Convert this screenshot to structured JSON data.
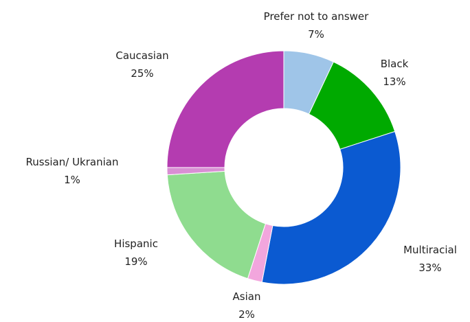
{
  "chart_data": {
    "type": "pie",
    "donut": true,
    "legend": "none",
    "slices": [
      {
        "label": "Prefer not to answer",
        "value": 7,
        "value_label": "7%",
        "color": "#9fc5e8"
      },
      {
        "label": "Black",
        "value": 13,
        "value_label": "13%",
        "color": "#00aa00"
      },
      {
        "label": "Multiracial",
        "value": 33,
        "value_label": "33%",
        "color": "#0b5ad1"
      },
      {
        "label": "Asian",
        "value": 2,
        "value_label": "2%",
        "color": "#f2a6dd"
      },
      {
        "label": "Hispanic",
        "value": 19,
        "value_label": "19%",
        "color": "#8fdc8f"
      },
      {
        "label": "Russian/ Ukranian",
        "value": 1,
        "value_label": "1%",
        "color": "#d98fd4"
      },
      {
        "label": "Caucasian",
        "value": 25,
        "value_label": "25%",
        "color": "#b43cb0"
      }
    ]
  }
}
